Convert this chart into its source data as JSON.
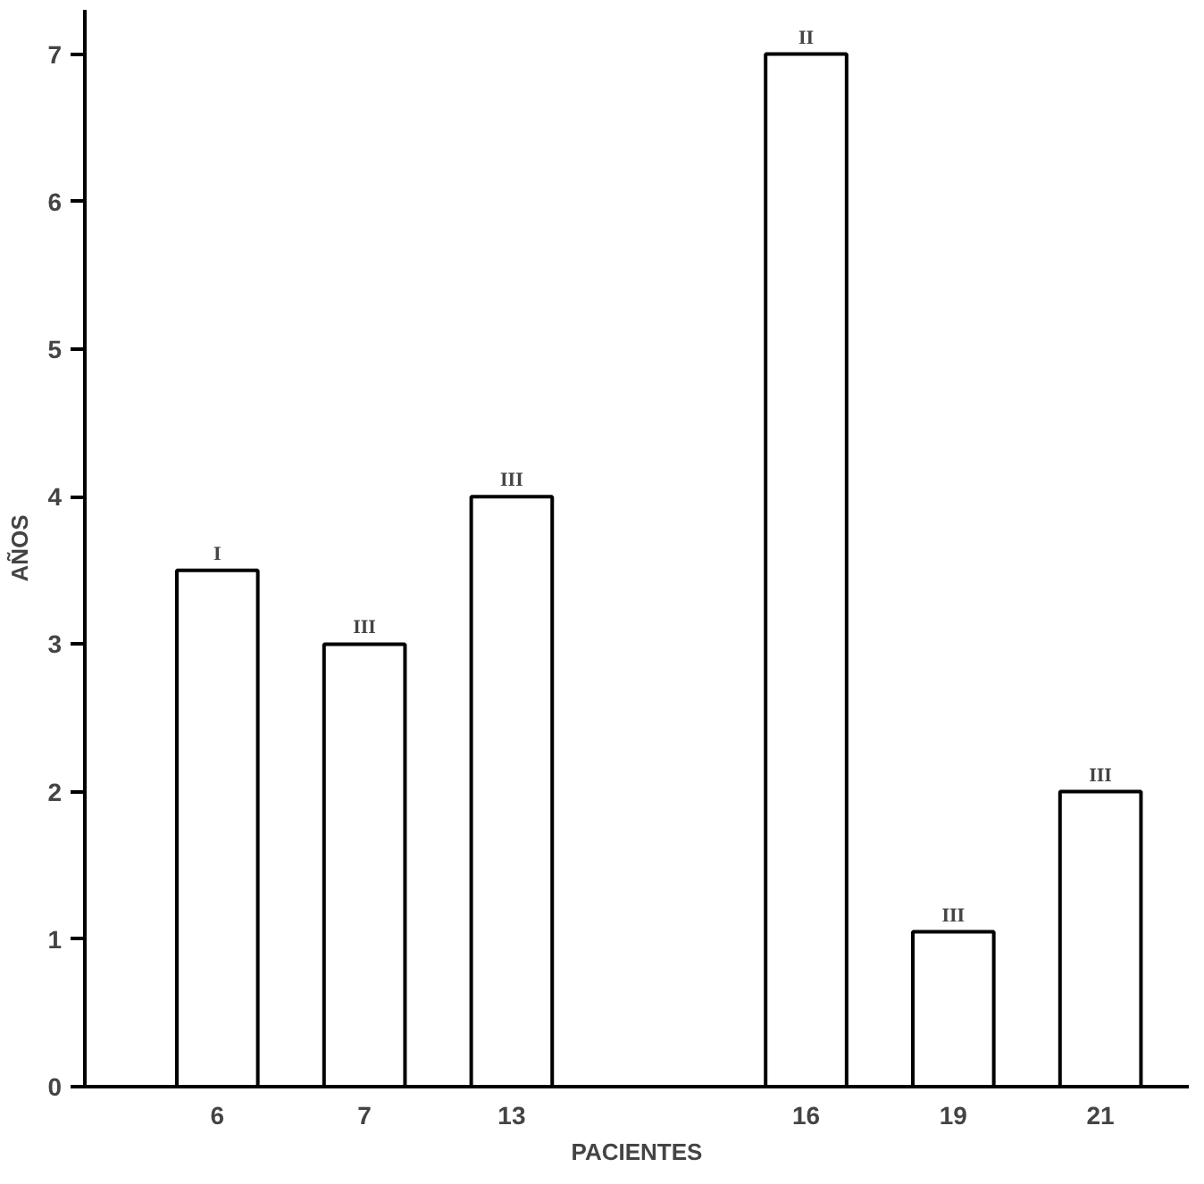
{
  "chart_data": {
    "type": "bar",
    "xlabel": "PACIENTES",
    "ylabel": "AÑOS",
    "categories": [
      "6",
      "7",
      "13",
      null,
      "16",
      "19",
      "21"
    ],
    "values": [
      3.5,
      3,
      4,
      null,
      7,
      1.05,
      2
    ],
    "value_labels": [
      "I",
      "III",
      "III",
      null,
      "II",
      "III",
      "III"
    ],
    "color": "#ffffff",
    "ylim": [
      0,
      7.3
    ],
    "yticks": [
      0,
      1,
      2,
      3,
      4,
      5,
      6,
      7
    ],
    "grid": false
  }
}
